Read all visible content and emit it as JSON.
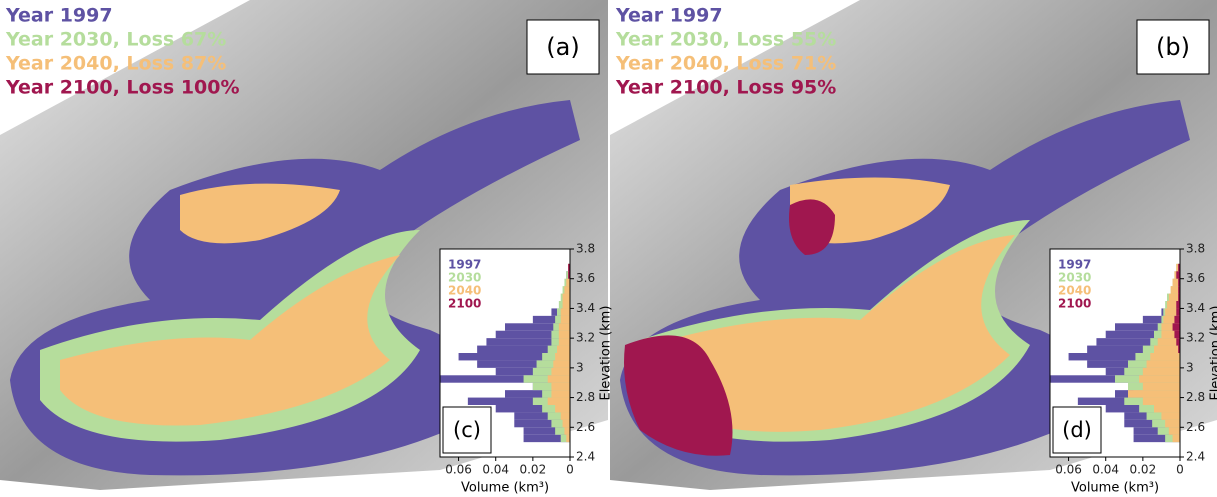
{
  "chart_data": [
    {
      "type": "map",
      "panel_label": "(a)",
      "legend": [
        {
          "text": "Year 1997",
          "color": "#5e52a3"
        },
        {
          "text": "Year 2030, Loss 67%",
          "color": "#b5dd9c"
        },
        {
          "text": "Year 2040, Loss 87%",
          "color": "#f5bf78"
        },
        {
          "text": "Year 2100, Loss 100%",
          "color": "#a0174f"
        }
      ]
    },
    {
      "type": "map",
      "panel_label": "(b)",
      "legend": [
        {
          "text": "Year 1997",
          "color": "#5e52a3"
        },
        {
          "text": "Year 2030, Loss 55%",
          "color": "#b5dd9c"
        },
        {
          "text": "Year 2040, Loss 71%",
          "color": "#f5bf78"
        },
        {
          "text": "Year 2100, Loss 95%",
          "color": "#a0174f"
        }
      ]
    },
    {
      "type": "histogram",
      "panel_label": "(c)",
      "xlabel": "Volume (km³)",
      "ylabel": "Elevation (km)",
      "bins": [
        2.5,
        2.55,
        2.6,
        2.65,
        2.7,
        2.75,
        2.8,
        2.85,
        2.9,
        2.95,
        3.0,
        3.05,
        3.1,
        3.15,
        3.2,
        3.25,
        3.3,
        3.35,
        3.4,
        3.45,
        3.5,
        3.55,
        3.6,
        3.65,
        3.7
      ],
      "series": [
        {
          "name": "1997",
          "color": "#5e52a3",
          "values": [
            0.025,
            0.025,
            0.03,
            0.03,
            0.04,
            0.055,
            0.035,
            0.02,
            0.07,
            0.04,
            0.05,
            0.06,
            0.05,
            0.045,
            0.04,
            0.035,
            0.02,
            0.01,
            0.005,
            0.004,
            0.003,
            0.002,
            0.002,
            0.001
          ]
        },
        {
          "name": "2030",
          "color": "#b5dd9c",
          "values": [
            0.005,
            0.008,
            0.01,
            0.012,
            0.015,
            0.02,
            0.015,
            0.02,
            0.025,
            0.02,
            0.018,
            0.015,
            0.012,
            0.01,
            0.01,
            0.009,
            0.008,
            0.007,
            0.006,
            0.005,
            0.004,
            0.003,
            0.002,
            0.001
          ]
        },
        {
          "name": "2040",
          "color": "#f5bf78",
          "values": [
            0.002,
            0.003,
            0.004,
            0.005,
            0.008,
            0.012,
            0.01,
            0.01,
            0.012,
            0.01,
            0.009,
            0.008,
            0.007,
            0.006,
            0.006,
            0.006,
            0.005,
            0.005,
            0.004,
            0.004,
            0.003,
            0.002,
            0.001,
            0.001
          ]
        },
        {
          "name": "2100",
          "color": "#a0174f",
          "values": [
            0,
            0,
            0,
            0,
            0,
            0,
            0,
            0,
            0,
            0,
            0,
            0,
            0,
            0,
            0,
            0,
            0,
            0,
            0,
            0,
            0,
            0,
            0.001,
            0.001
          ]
        }
      ],
      "xlim": [
        0.07,
        0
      ],
      "xticks": [
        0.06,
        0.04,
        0.02,
        0
      ],
      "ylim": [
        2.4,
        3.8
      ],
      "yticks": [
        2.4,
        2.6,
        2.8,
        3,
        3.2,
        3.4,
        3.6,
        3.8
      ]
    },
    {
      "type": "histogram",
      "panel_label": "(d)",
      "xlabel": "Volume (km³)",
      "ylabel": "Elevation (km)",
      "bins": [
        2.5,
        2.55,
        2.6,
        2.65,
        2.7,
        2.75,
        2.8,
        2.85,
        2.9,
        2.95,
        3.0,
        3.05,
        3.1,
        3.15,
        3.2,
        3.25,
        3.3,
        3.35,
        3.4,
        3.45,
        3.5,
        3.55,
        3.6,
        3.65,
        3.7
      ],
      "series": [
        {
          "name": "1997",
          "color": "#5e52a3",
          "values": [
            0.025,
            0.025,
            0.03,
            0.03,
            0.04,
            0.055,
            0.035,
            0.02,
            0.07,
            0.04,
            0.05,
            0.06,
            0.05,
            0.045,
            0.04,
            0.035,
            0.02,
            0.01,
            0.005,
            0.004,
            0.003,
            0.002,
            0.002,
            0.001
          ]
        },
        {
          "name": "2030",
          "color": "#b5dd9c",
          "values": [
            0.008,
            0.012,
            0.015,
            0.018,
            0.022,
            0.03,
            0.025,
            0.028,
            0.035,
            0.03,
            0.028,
            0.024,
            0.02,
            0.016,
            0.014,
            0.012,
            0.01,
            0.009,
            0.008,
            0.007,
            0.005,
            0.004,
            0.003,
            0.002
          ]
        },
        {
          "name": "2040",
          "color": "#f5bf78",
          "values": [
            0.004,
            0.006,
            0.008,
            0.01,
            0.014,
            0.02,
            0.028,
            0.02,
            0.022,
            0.02,
            0.018,
            0.016,
            0.014,
            0.012,
            0.01,
            0.01,
            0.009,
            0.008,
            0.007,
            0.006,
            0.005,
            0.004,
            0.003,
            0.002
          ]
        },
        {
          "name": "2100",
          "color": "#a0174f",
          "values": [
            0,
            0,
            0,
            0,
            0,
            0,
            0,
            0,
            0,
            0,
            0,
            0,
            0.001,
            0.002,
            0.003,
            0.004,
            0.003,
            0.002,
            0.002,
            0.001,
            0.001,
            0.001,
            0.002,
            0.001
          ]
        }
      ],
      "xlim": [
        0.07,
        0
      ],
      "xticks": [
        0.06,
        0.04,
        0.02,
        0
      ],
      "ylim": [
        2.4,
        3.8
      ],
      "yticks": [
        2.4,
        2.6,
        2.8,
        3,
        3.2,
        3.4,
        3.6,
        3.8
      ]
    }
  ]
}
